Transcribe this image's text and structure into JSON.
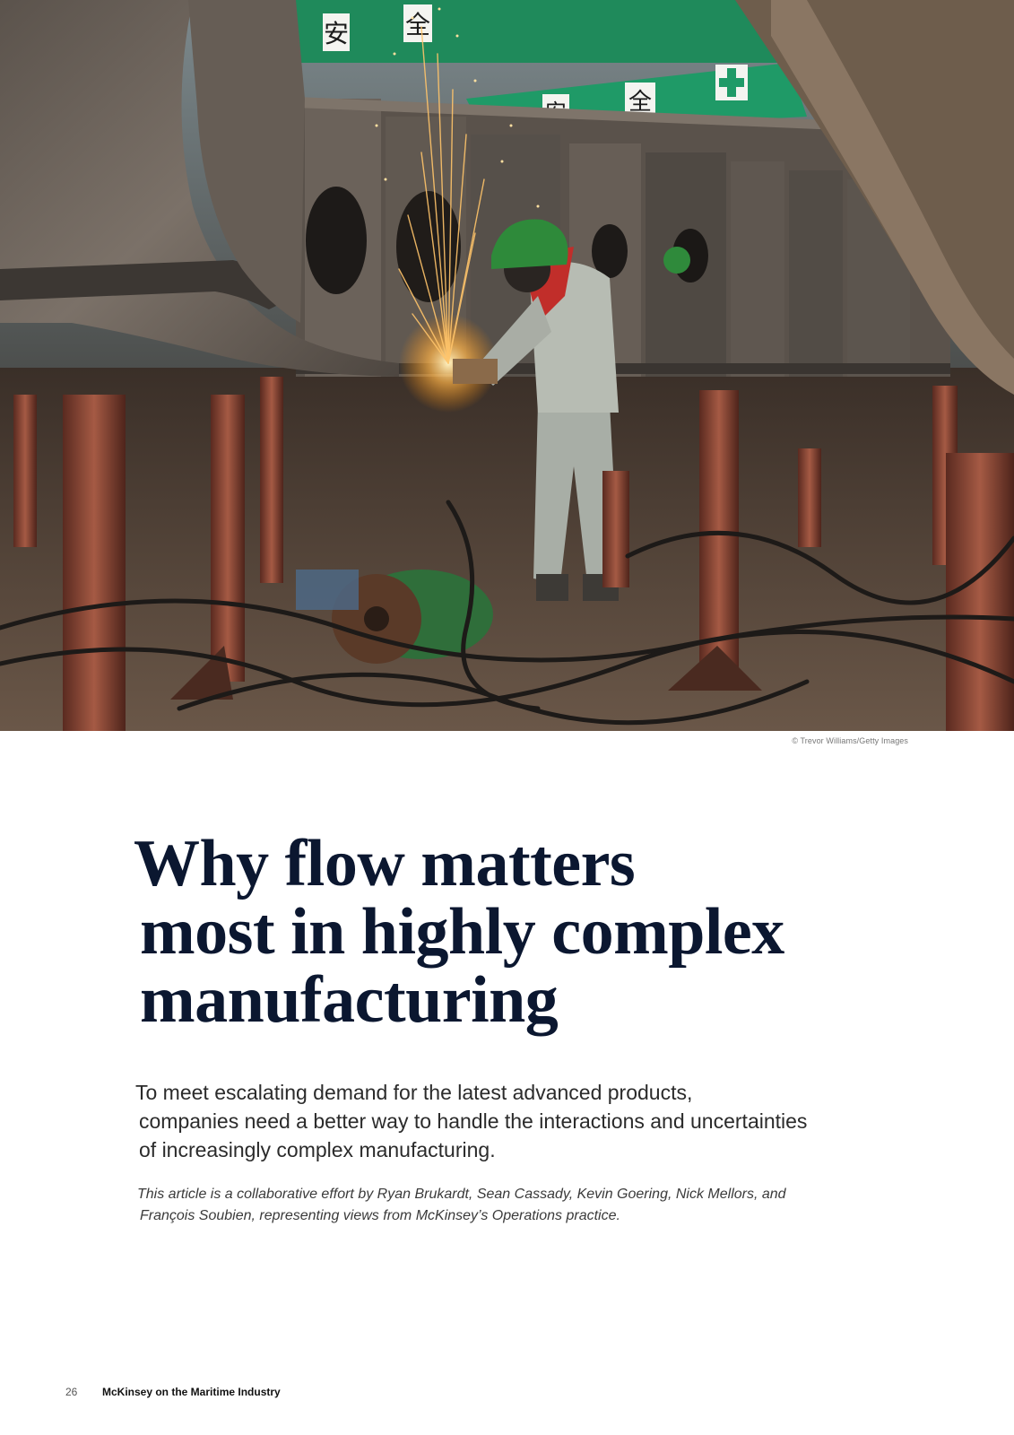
{
  "photo": {
    "credit": "© Trevor Williams/Getty Images",
    "sign_glyphs": [
      "安",
      "全",
      "安",
      "全"
    ]
  },
  "article": {
    "title_lines": [
      "Why flow matters",
      "most in highly complex",
      "manufacturing"
    ],
    "deck_lines": [
      "To meet escalating demand for the latest advanced products,",
      "companies need a better way to handle the interactions and uncertainties",
      "of increasingly complex manufacturing."
    ],
    "byline_lines": [
      "This article is a collaborative effort by Ryan Brukardt, Sean Cassady, Kevin Goering, Nick Mellors, and",
      "François Soubien, representing views from McKinsey’s Operations practice."
    ]
  },
  "footer": {
    "page_number": "26",
    "publication": "McKinsey on the Maritime Industry"
  },
  "colors": {
    "title": "#0b1730",
    "sign_green": "#1f8a5b",
    "hull_steel": "#6d6459",
    "rust": "#8a3b2a"
  }
}
